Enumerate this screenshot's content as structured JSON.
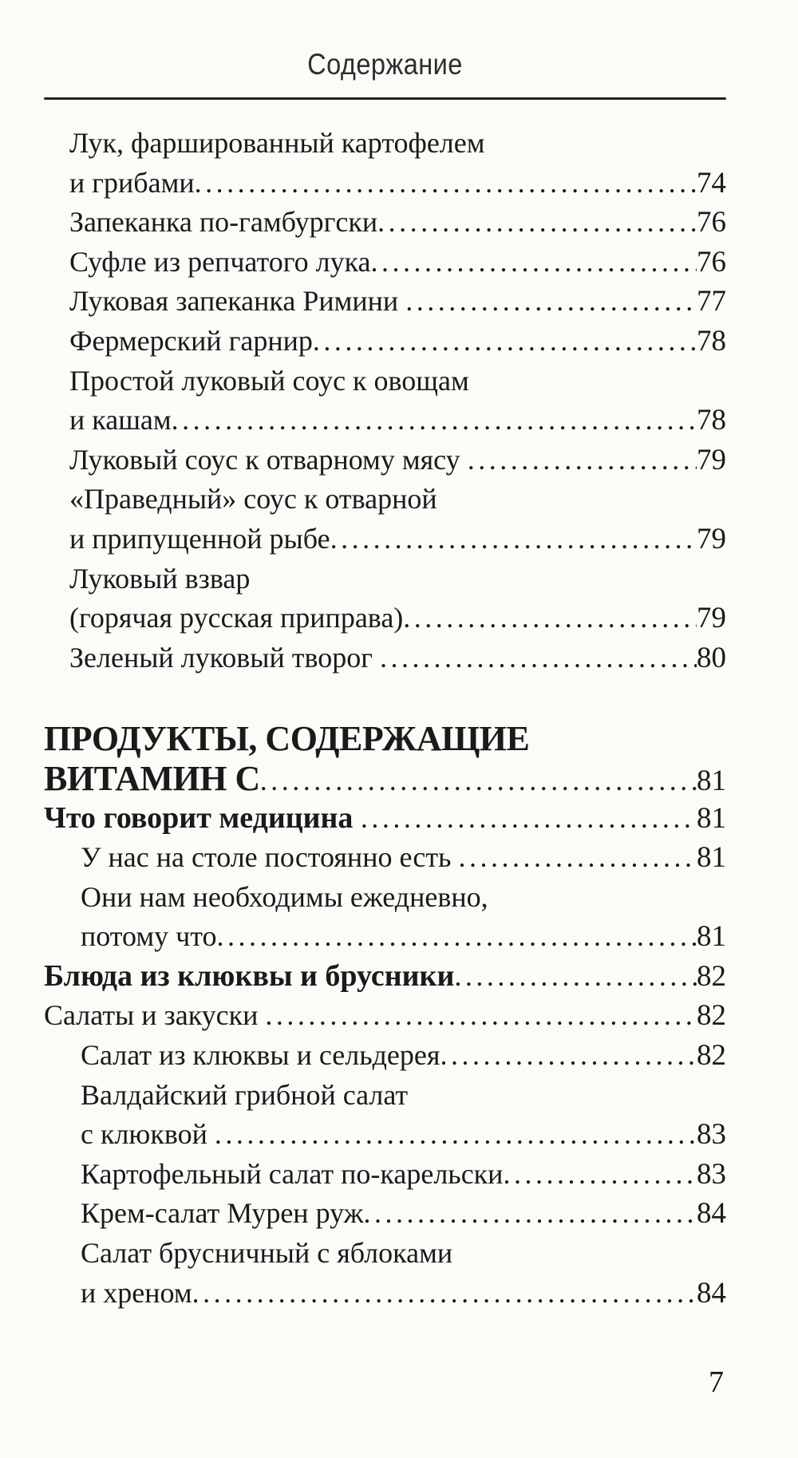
{
  "header": {
    "title": "Содержание"
  },
  "footer": {
    "page_number": "7"
  },
  "colors": {
    "background": "#fbfbf8",
    "text": "#1a1a1a",
    "rule": "#212121"
  },
  "toc": {
    "leader_char": ".",
    "entries": [
      {
        "text": "Лук, фаршированный картофелем",
        "page": null,
        "indent": "recipe",
        "style": "regular"
      },
      {
        "text": "и грибами",
        "page": "74",
        "indent": "recipe",
        "style": "regular"
      },
      {
        "text": "Запеканка по-гамбургски",
        "page": "76",
        "indent": "recipe",
        "style": "regular"
      },
      {
        "text": "Суфле из репчатого лука",
        "page": "76",
        "indent": "recipe",
        "style": "regular"
      },
      {
        "text": "Луковая запеканка Римини ",
        "page": "77",
        "indent": "recipe",
        "style": "regular"
      },
      {
        "text": "Фермерский гарнир",
        "page": "78",
        "indent": "recipe",
        "style": "regular"
      },
      {
        "text": "Простой луковый соус к овощам",
        "page": null,
        "indent": "recipe",
        "style": "regular"
      },
      {
        "text": "и кашам",
        "page": "78",
        "indent": "recipe",
        "style": "regular"
      },
      {
        "text": "Луковый соус к отварному мясу ",
        "page": "79",
        "indent": "recipe",
        "style": "regular"
      },
      {
        "text": "«Праведный» соус к отварной",
        "page": null,
        "indent": "recipe",
        "style": "regular"
      },
      {
        "text": "и припущенной рыбе",
        "page": "79",
        "indent": "recipe",
        "style": "regular"
      },
      {
        "text": "Луковый взвар",
        "page": null,
        "indent": "recipe",
        "style": "regular"
      },
      {
        "text": "(горячая русская приправа)",
        "page": "79",
        "indent": "recipe",
        "style": "regular"
      },
      {
        "text": "Зеленый луковый творог ",
        "page": "80",
        "indent": "recipe",
        "style": "regular"
      },
      {
        "text": "ПРОДУКТЫ, СОДЕРЖАЩИЕ",
        "page": null,
        "indent": "section",
        "style": "bold-caps",
        "gap_before": true
      },
      {
        "text": "ВИТАМИН С",
        "page": "81",
        "indent": "section",
        "style": "bold-caps"
      },
      {
        "text": "Что говорит медицина ",
        "page": "81",
        "indent": "section",
        "style": "bold"
      },
      {
        "text": "У нас на столе постоянно есть ",
        "page": "81",
        "indent": "sub",
        "style": "regular"
      },
      {
        "text": "Они нам необходимы ежедневно,",
        "page": null,
        "indent": "sub",
        "style": "regular"
      },
      {
        "text": "потому что",
        "page": "81",
        "indent": "sub",
        "style": "regular"
      },
      {
        "text": "Блюда из клюквы и брусники",
        "page": "82",
        "indent": "section",
        "style": "bold"
      },
      {
        "text": "Салаты и закуски ",
        "page": "82",
        "indent": "section",
        "style": "regular"
      },
      {
        "text": "Салат из клюквы и сельдерея",
        "page": "82",
        "indent": "sub",
        "style": "regular"
      },
      {
        "text": "Валдайский грибной салат",
        "page": null,
        "indent": "sub",
        "style": "regular"
      },
      {
        "text": "с клюквой ",
        "page": "83",
        "indent": "sub",
        "style": "regular"
      },
      {
        "text": "Картофельный салат по-карельски",
        "page": "83",
        "indent": "sub",
        "style": "regular"
      },
      {
        "text": "Крем-салат Мурен руж",
        "page": "84",
        "indent": "sub",
        "style": "regular"
      },
      {
        "text": "Салат брусничный с яблоками",
        "page": null,
        "indent": "sub",
        "style": "regular"
      },
      {
        "text": "и хреном",
        "page": "84",
        "indent": "sub",
        "style": "regular"
      }
    ]
  }
}
